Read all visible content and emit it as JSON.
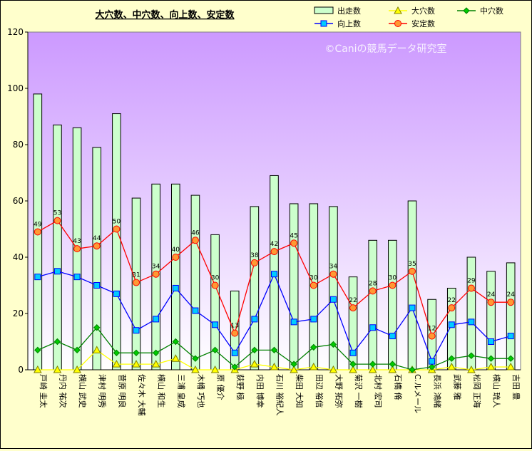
{
  "chart_data": {
    "type": "bar",
    "title": "大穴数、中穴数、向上数、安定数",
    "watermark": "©Caniの競馬データ研究室",
    "ylim": [
      0,
      120
    ],
    "yticks": [
      0,
      20,
      40,
      60,
      80,
      100,
      120
    ],
    "categories": [
      "戸崎 圭太",
      "丹内 祐次",
      "横山 武史",
      "津村 明秀",
      "菅原 明良",
      "佐々木 大輔",
      "横山 和生",
      "三浦 皇成",
      "木幡 巧也",
      "原 優介",
      "荻野 極",
      "内田 博幸",
      "石川 裕紀人",
      "柴田 大知",
      "田辺 裕信",
      "大野 拓弥",
      "菊沢 一樹",
      "北村 宏司",
      "石橋 脩",
      "C.ルメール",
      "長浜 鴻緒",
      "武藤 雅",
      "松岡 正海",
      "横山 琉人",
      "吉田 豊"
    ],
    "series": [
      {
        "name": "出走数",
        "type": "bar",
        "color": "#ccffcc",
        "values": [
          98,
          87,
          86,
          79,
          91,
          61,
          66,
          66,
          62,
          48,
          28,
          58,
          69,
          59,
          59,
          58,
          33,
          46,
          46,
          60,
          25,
          29,
          40,
          35,
          38
        ]
      },
      {
        "name": "大穴数",
        "type": "line",
        "color": "#ffff00",
        "values": [
          0,
          0,
          0,
          7,
          2,
          2,
          2,
          4,
          0,
          0,
          0,
          2,
          1,
          0,
          1,
          0,
          0,
          0,
          0,
          0,
          0,
          1,
          0,
          1,
          1
        ]
      },
      {
        "name": "中穴数",
        "type": "line",
        "color": "#008000",
        "values": [
          7,
          10,
          7,
          15,
          6,
          6,
          6,
          10,
          4,
          7,
          1,
          7,
          7,
          2,
          8,
          9,
          2,
          2,
          2,
          0,
          1,
          4,
          5,
          4,
          4
        ]
      },
      {
        "name": "向上数",
        "type": "line",
        "color": "#0000ff",
        "values": [
          33,
          35,
          33,
          30,
          27,
          14,
          18,
          29,
          21,
          16,
          6,
          18,
          34,
          17,
          18,
          25,
          6,
          15,
          12,
          22,
          3,
          16,
          17,
          10,
          12
        ]
      },
      {
        "name": "安定数",
        "type": "line",
        "color": "#ff0000",
        "values": [
          49,
          53,
          43,
          44,
          50,
          31,
          34,
          40,
          46,
          30,
          13,
          38,
          42,
          45,
          30,
          34,
          22,
          28,
          30,
          35,
          12,
          22,
          29,
          24,
          24
        ]
      }
    ],
    "data_labels_series": "安定数",
    "legend_position": "top-right",
    "grid": false
  }
}
